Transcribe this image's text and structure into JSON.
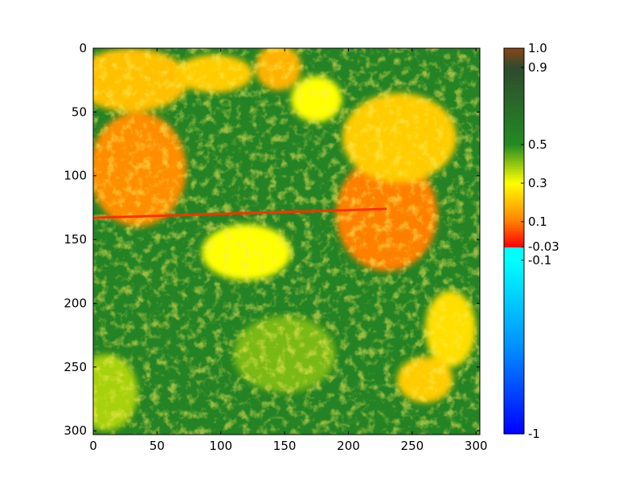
{
  "chart_data": {
    "type": "heatmap",
    "title": "",
    "xlabel": "",
    "ylabel": "",
    "grid": false,
    "image_size": {
      "cols": 303,
      "rows": 303
    },
    "x_ticks": [
      0,
      50,
      100,
      150,
      200,
      250,
      300
    ],
    "y_ticks": [
      0,
      50,
      100,
      150,
      200,
      250,
      300
    ],
    "xlim": [
      0,
      303
    ],
    "ylim": [
      303,
      0
    ],
    "y_inverted": true,
    "colorbar": {
      "range": [
        -1,
        1
      ],
      "placement": "right",
      "ticks": [
        {
          "value": 1.0,
          "label": "1.0"
        },
        {
          "value": 0.9,
          "label": "0.9"
        },
        {
          "value": 0.5,
          "label": "0.5"
        },
        {
          "value": 0.3,
          "label": "0.3"
        },
        {
          "value": 0.1,
          "label": "0.1"
        },
        {
          "value": -0.03,
          "label": "-0.03"
        },
        {
          "value": -0.1,
          "label": "-0.1"
        },
        {
          "value": -1,
          "label": "-1"
        }
      ],
      "segments": [
        {
          "from": -1,
          "to": -0.1,
          "colors": [
            "#0000ff",
            "#0090ff",
            "#00ffff"
          ]
        },
        {
          "from": -0.1,
          "to": -0.03,
          "colors": [
            "#00ffff",
            "#00ffff"
          ]
        },
        {
          "from": -0.03,
          "to": 0.1,
          "colors": [
            "#ff0000",
            "#ff8000"
          ]
        },
        {
          "from": 0.1,
          "to": 0.3,
          "colors": [
            "#ff8000",
            "#ffff00"
          ]
        },
        {
          "from": 0.3,
          "to": 0.5,
          "colors": [
            "#ffff00",
            "#228b22"
          ]
        },
        {
          "from": 0.5,
          "to": 0.9,
          "colors": [
            "#228b22",
            "#2e4a2e"
          ]
        },
        {
          "from": 0.9,
          "to": 1.0,
          "colors": [
            "#2e4a2e",
            "#8b4513"
          ]
        }
      ]
    },
    "regions": [
      {
        "kind": "background",
        "value": 0.55
      },
      {
        "kind": "blob",
        "x": 35,
        "y": 95,
        "rx": 38,
        "ry": 45,
        "value": 0.12
      },
      {
        "kind": "blob",
        "x": 30,
        "y": 25,
        "rx": 45,
        "ry": 25,
        "value": 0.2
      },
      {
        "kind": "blob",
        "x": 95,
        "y": 20,
        "rx": 30,
        "ry": 15,
        "value": 0.22
      },
      {
        "kind": "blob",
        "x": 145,
        "y": 15,
        "rx": 18,
        "ry": 18,
        "value": 0.18
      },
      {
        "kind": "blob",
        "x": 175,
        "y": 40,
        "rx": 20,
        "ry": 18,
        "value": 0.3
      },
      {
        "kind": "blob",
        "x": 230,
        "y": 130,
        "rx": 40,
        "ry": 45,
        "value": 0.1
      },
      {
        "kind": "blob",
        "x": 240,
        "y": 70,
        "rx": 45,
        "ry": 35,
        "value": 0.22
      },
      {
        "kind": "blob",
        "x": 120,
        "y": 160,
        "rx": 35,
        "ry": 22,
        "value": 0.3
      },
      {
        "kind": "blob",
        "x": 280,
        "y": 220,
        "rx": 20,
        "ry": 30,
        "value": 0.25
      },
      {
        "kind": "blob",
        "x": 260,
        "y": 260,
        "rx": 22,
        "ry": 18,
        "value": 0.22
      },
      {
        "kind": "blob",
        "x": 10,
        "y": 270,
        "rx": 25,
        "ry": 30,
        "value": 0.38
      },
      {
        "kind": "blob",
        "x": 150,
        "y": 240,
        "rx": 40,
        "ry": 30,
        "value": 0.42
      },
      {
        "kind": "road",
        "x1": 0,
        "y1": 133,
        "x2": 230,
        "y2": 126,
        "value": 0.02
      }
    ]
  }
}
